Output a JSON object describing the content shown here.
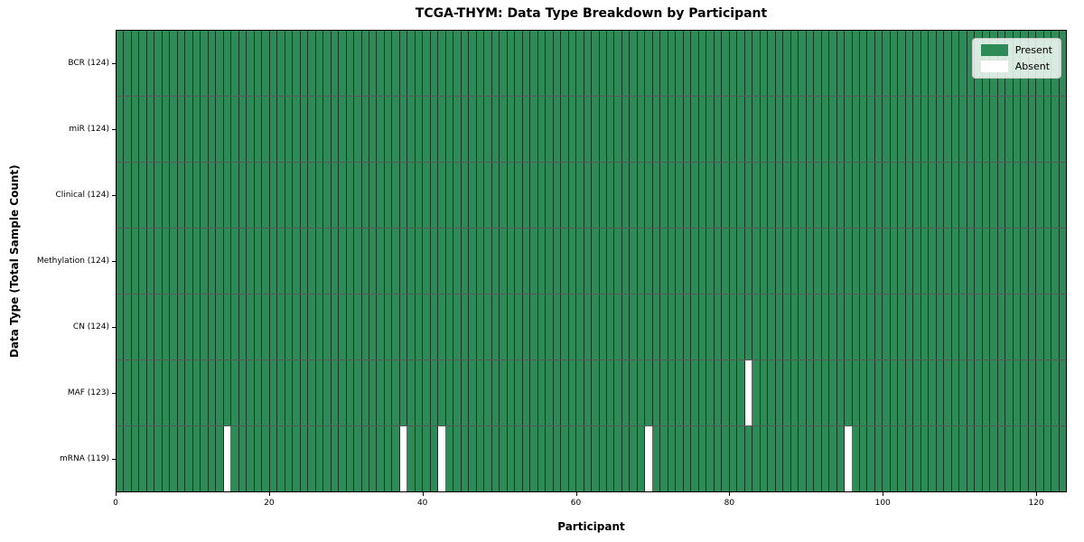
{
  "chart_data": {
    "type": "heatmap",
    "title": "TCGA-THYM: Data Type Breakdown by Participant",
    "xlabel": "Participant",
    "ylabel": "Data Type (Total Sample Count)",
    "n_participants": 124,
    "x_ticks": [
      0,
      20,
      40,
      60,
      80,
      100,
      120
    ],
    "x_range": [
      0,
      124
    ],
    "grid": false,
    "legend_position": "upper right",
    "rows": [
      {
        "label": "BCR (124)",
        "data_type": "BCR",
        "present_count": 124,
        "absent_indices": []
      },
      {
        "label": "miR (124)",
        "data_type": "miR",
        "present_count": 124,
        "absent_indices": []
      },
      {
        "label": "Clinical (124)",
        "data_type": "Clinical",
        "present_count": 124,
        "absent_indices": []
      },
      {
        "label": "Methylation (124)",
        "data_type": "Methylation",
        "present_count": 124,
        "absent_indices": []
      },
      {
        "label": "CN (124)",
        "data_type": "CN",
        "present_count": 124,
        "absent_indices": []
      },
      {
        "label": "MAF (123)",
        "data_type": "MAF",
        "present_count": 123,
        "absent_indices": [
          82
        ]
      },
      {
        "label": "mRNA (119)",
        "data_type": "mRNA",
        "present_count": 119,
        "absent_indices": [
          14,
          37,
          42,
          69,
          95
        ]
      }
    ],
    "legend": [
      {
        "label": "Present",
        "color": "#2e8b57"
      },
      {
        "label": "Absent",
        "color": "#ffffff"
      }
    ],
    "colors": {
      "present": "#2e8b57",
      "absent": "#ffffff",
      "cell_edge": "rgba(0,0,0,0.60)"
    }
  }
}
